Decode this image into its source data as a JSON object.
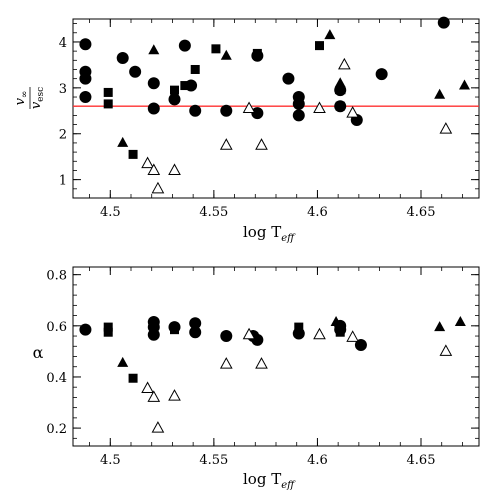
{
  "chart_data": [
    {
      "type": "scatter",
      "xlabel": "log T",
      "xlabel_sub": "eff",
      "ylabel": "v",
      "ylabel_sub": "∞",
      "ylabel_den": "v",
      "ylabel_den_sub": "esc",
      "xlim": [
        4.482,
        4.678
      ],
      "ylim": [
        0.6,
        4.5
      ],
      "xticks": [
        "4.5",
        "4.55",
        "4.6",
        "4.65"
      ],
      "xtick_values": [
        4.5,
        4.55,
        4.6,
        4.65
      ],
      "yticks": [
        "1",
        "2",
        "3",
        "4"
      ],
      "ytick_values": [
        1,
        2,
        3,
        4
      ],
      "reference_line": {
        "y": 2.6,
        "color": "#ff3030"
      },
      "series": [
        {
          "marker": "filled-circle",
          "points": [
            [
              4.488,
              3.95
            ],
            [
              4.488,
              3.35
            ],
            [
              4.488,
              3.2
            ],
            [
              4.488,
              2.8
            ],
            [
              4.506,
              3.65
            ],
            [
              4.512,
              3.35
            ],
            [
              4.521,
              3.1
            ],
            [
              4.521,
              2.55
            ],
            [
              4.531,
              2.75
            ],
            [
              4.536,
              3.92
            ],
            [
              4.539,
              3.05
            ],
            [
              4.541,
              2.5
            ],
            [
              4.556,
              2.5
            ],
            [
              4.571,
              3.7
            ],
            [
              4.571,
              2.45
            ],
            [
              4.586,
              3.2
            ],
            [
              4.591,
              2.8
            ],
            [
              4.591,
              2.65
            ],
            [
              4.591,
              2.4
            ],
            [
              4.611,
              2.95
            ],
            [
              4.611,
              2.6
            ],
            [
              4.619,
              2.3
            ],
            [
              4.631,
              3.3
            ],
            [
              4.661,
              4.42
            ]
          ]
        },
        {
          "marker": "filled-square",
          "points": [
            [
              4.499,
              2.9
            ],
            [
              4.499,
              2.65
            ],
            [
              4.511,
              1.55
            ],
            [
              4.531,
              2.95
            ],
            [
              4.536,
              3.05
            ],
            [
              4.541,
              3.4
            ],
            [
              4.551,
              3.85
            ],
            [
              4.571,
              3.75
            ],
            [
              4.601,
              3.92
            ],
            [
              4.611,
              2.6
            ]
          ]
        },
        {
          "marker": "filled-triangle",
          "points": [
            [
              4.506,
              1.8
            ],
            [
              4.521,
              3.82
            ],
            [
              4.556,
              3.7
            ],
            [
              4.606,
              4.15
            ],
            [
              4.611,
              2.95
            ],
            [
              4.611,
              3.1
            ],
            [
              4.659,
              2.85
            ],
            [
              4.671,
              3.05
            ]
          ]
        },
        {
          "marker": "open-triangle",
          "points": [
            [
              4.518,
              1.35
            ],
            [
              4.521,
              1.2
            ],
            [
              4.523,
              0.8
            ],
            [
              4.531,
              1.2
            ],
            [
              4.556,
              1.75
            ],
            [
              4.567,
              2.55
            ],
            [
              4.573,
              1.75
            ],
            [
              4.601,
              2.55
            ],
            [
              4.613,
              3.5
            ],
            [
              4.617,
              2.45
            ],
            [
              4.662,
              2.1
            ]
          ]
        }
      ]
    },
    {
      "type": "scatter",
      "xlabel": "log T",
      "xlabel_sub": "eff",
      "ylabel": "α",
      "xlim": [
        4.482,
        4.678
      ],
      "ylim": [
        0.13,
        0.83
      ],
      "xticks": [
        "4.5",
        "4.55",
        "4.6",
        "4.65"
      ],
      "xtick_values": [
        4.5,
        4.55,
        4.6,
        4.65
      ],
      "yticks": [
        "0.2",
        "0.4",
        "0.6",
        "0.8"
      ],
      "ytick_values": [
        0.2,
        0.4,
        0.6,
        0.8
      ],
      "series": [
        {
          "marker": "filled-circle",
          "points": [
            [
              4.488,
              0.585
            ],
            [
              4.521,
              0.615
            ],
            [
              4.521,
              0.595
            ],
            [
              4.521,
              0.565
            ],
            [
              4.531,
              0.595
            ],
            [
              4.541,
              0.61
            ],
            [
              4.541,
              0.575
            ],
            [
              4.556,
              0.56
            ],
            [
              4.569,
              0.56
            ],
            [
              4.571,
              0.545
            ],
            [
              4.591,
              0.57
            ],
            [
              4.611,
              0.6
            ],
            [
              4.611,
              0.585
            ],
            [
              4.621,
              0.525
            ]
          ]
        },
        {
          "marker": "filled-square",
          "points": [
            [
              4.499,
              0.595
            ],
            [
              4.499,
              0.575
            ],
            [
              4.511,
              0.395
            ],
            [
              4.531,
              0.585
            ],
            [
              4.591,
              0.595
            ],
            [
              4.611,
              0.575
            ]
          ]
        },
        {
          "marker": "filled-triangle",
          "points": [
            [
              4.506,
              0.455
            ],
            [
              4.609,
              0.615
            ],
            [
              4.659,
              0.595
            ],
            [
              4.669,
              0.615
            ]
          ]
        },
        {
          "marker": "open-triangle",
          "points": [
            [
              4.518,
              0.355
            ],
            [
              4.521,
              0.32
            ],
            [
              4.523,
              0.2
            ],
            [
              4.531,
              0.325
            ],
            [
              4.556,
              0.45
            ],
            [
              4.567,
              0.565
            ],
            [
              4.573,
              0.45
            ],
            [
              4.601,
              0.565
            ],
            [
              4.617,
              0.555
            ],
            [
              4.662,
              0.5
            ]
          ]
        }
      ]
    }
  ]
}
